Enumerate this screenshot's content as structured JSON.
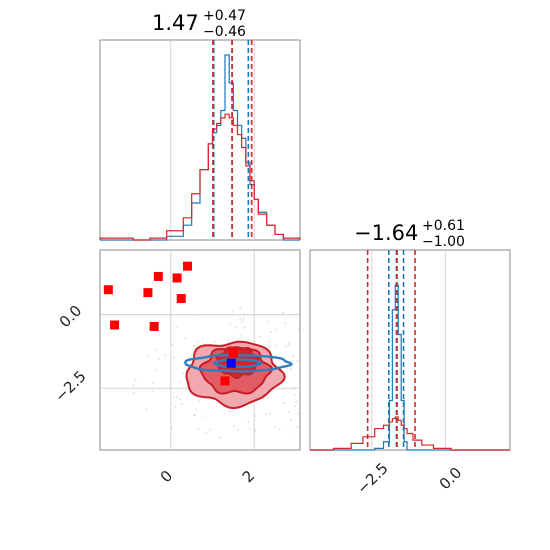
{
  "chart_data": [
    {
      "type": "histogram",
      "panel": "top-left",
      "title": {
        "value": "1.47",
        "upper": "+0.47",
        "lower": "−0.46"
      },
      "xlim": [
        -1.7,
        3.1
      ],
      "bin_edges": [
        -1.7,
        -1.3,
        -0.9,
        -0.5,
        -0.1,
        0.3,
        0.5,
        0.7,
        0.9,
        1.0,
        1.1,
        1.2,
        1.3,
        1.4,
        1.5,
        1.6,
        1.7,
        1.8,
        1.9,
        2.0,
        2.1,
        2.3,
        2.5,
        2.7,
        3.1
      ],
      "series": [
        {
          "color": "#1f77b4",
          "counts": [
            0,
            0,
            0,
            0,
            0.02,
            0.08,
            0.2,
            0.38,
            0.52,
            0.58,
            0.62,
            0.7,
            1.0,
            0.85,
            0.7,
            0.62,
            0.55,
            0.42,
            0.3,
            0.22,
            0.15,
            0.08,
            0.03,
            0
          ]
        },
        {
          "color": "#d62728",
          "counts": [
            0.01,
            0.01,
            0.0,
            0.01,
            0.05,
            0.12,
            0.25,
            0.38,
            0.52,
            0.6,
            0.63,
            0.66,
            0.68,
            0.66,
            0.62,
            0.57,
            0.5,
            0.4,
            0.32,
            0.22,
            0.14,
            0.08,
            0.03,
            0.01
          ]
        }
      ],
      "quantiles": [
        {
          "color": "#1f77b4",
          "x": [
            1.03,
            1.47,
            1.86
          ]
        },
        {
          "color": "#d62728",
          "x": [
            1.01,
            1.47,
            1.94
          ]
        }
      ]
    },
    {
      "type": "scatter-contour",
      "panel": "bottom-left",
      "xlim": [
        -1.7,
        3.1
      ],
      "ylim": [
        -4.6,
        2.2
      ],
      "xticks": [
        "0",
        "2"
      ],
      "yticks": [
        "0.0",
        "−2.5"
      ],
      "red_markers": [
        [
          -1.5,
          0.85
        ],
        [
          -1.35,
          -0.35
        ],
        [
          -0.55,
          0.75
        ],
        [
          -0.3,
          1.3
        ],
        [
          -0.4,
          -0.4
        ],
        [
          0.15,
          1.25
        ],
        [
          0.25,
          0.55
        ],
        [
          0.4,
          1.65
        ],
        [
          1.5,
          -1.3
        ],
        [
          1.3,
          -2.25
        ]
      ],
      "blue_marker": [
        1.45,
        -1.65
      ],
      "red_contours": [
        {
          "level": "outer",
          "center": [
            1.5,
            -2.0
          ],
          "rx": 2.25,
          "ry": 2.15
        },
        {
          "level": "middle",
          "center": [
            1.55,
            -1.9
          ],
          "rx": 1.6,
          "ry": 1.55
        },
        {
          "level": "inner",
          "center": [
            1.6,
            -1.6
          ],
          "rx": 0.95,
          "ry": 1.0
        }
      ],
      "blue_contours": [
        {
          "level": "outer",
          "center": [
            1.6,
            -1.65
          ],
          "rx": 2.5,
          "ry": 0.55
        },
        {
          "level": "inner",
          "center": [
            1.6,
            -1.65
          ],
          "rx": 1.1,
          "ry": 0.25
        }
      ]
    },
    {
      "type": "histogram",
      "panel": "bottom-right",
      "title": {
        "value": "−1.64",
        "upper": "+0.61",
        "lower": "−1.00"
      },
      "xlim": [
        -4.6,
        2.2
      ],
      "xticks": [
        "−2.5",
        "0.0"
      ],
      "bin_edges": [
        -4.6,
        -3.8,
        -3.2,
        -2.8,
        -2.4,
        -2.1,
        -1.9,
        -1.8,
        -1.7,
        -1.6,
        -1.5,
        -1.4,
        -1.3,
        -1.1,
        -0.8,
        -0.4,
        0.2,
        2.2
      ],
      "series": [
        {
          "color": "#1f77b4",
          "counts": [
            0,
            0,
            0,
            0,
            0.01,
            0.05,
            0.3,
            0.85,
            1.0,
            0.7,
            0.3,
            0.05,
            0.0,
            0,
            0,
            0,
            0
          ]
        },
        {
          "color": "#d62728",
          "counts": [
            0.0,
            0.01,
            0.04,
            0.08,
            0.13,
            0.15,
            0.17,
            0.19,
            0.2,
            0.18,
            0.15,
            0.13,
            0.1,
            0.06,
            0.03,
            0.01,
            0.0
          ]
        }
      ],
      "quantiles": [
        {
          "color": "#1f77b4",
          "x": [
            -1.92,
            -1.66,
            -1.42
          ]
        },
        {
          "color": "#d62728",
          "x": [
            -2.64,
            -1.64,
            -1.03
          ]
        }
      ]
    }
  ]
}
